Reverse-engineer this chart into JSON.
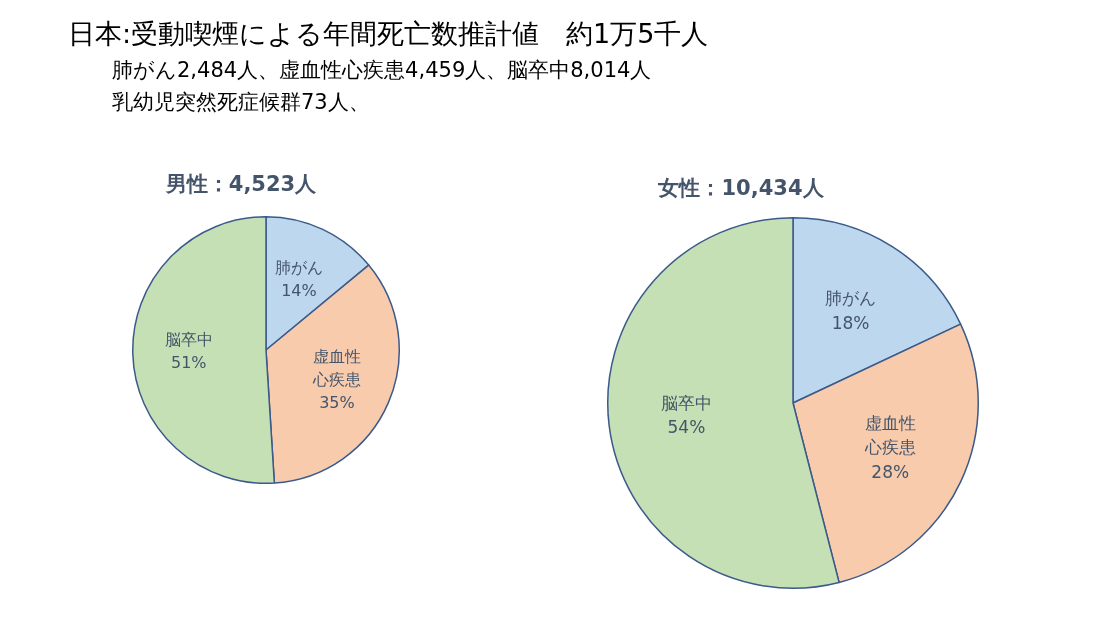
{
  "chart_data": [
    {
      "type": "other",
      "title": "日本:受動喫煙による年間死亡数推計値　約1万5千人",
      "annotations": [
        "肺がん2,484人、虚血性心疾患4,459人、脳卒中8,014人",
        "乳幼児突然死症候群73人、"
      ]
    },
    {
      "type": "pie",
      "title": "男性：4,523人",
      "categories": [
        "肺がん",
        "虚血性心疾患",
        "脳卒中"
      ],
      "values": [
        14,
        35,
        51
      ],
      "colors": [
        "#bdd7ee",
        "#f8cbad",
        "#c5e0b4"
      ],
      "value_labels": [
        "14%",
        "35%",
        "51%"
      ]
    },
    {
      "type": "pie",
      "title": "女性：10,434人",
      "categories": [
        "肺がん",
        "虚血性心疾患",
        "脳卒中"
      ],
      "values": [
        18,
        28,
        54
      ],
      "colors": [
        "#bdd7ee",
        "#f8cbad",
        "#c5e0b4"
      ],
      "value_labels": [
        "18%",
        "28%",
        "54%"
      ]
    }
  ]
}
